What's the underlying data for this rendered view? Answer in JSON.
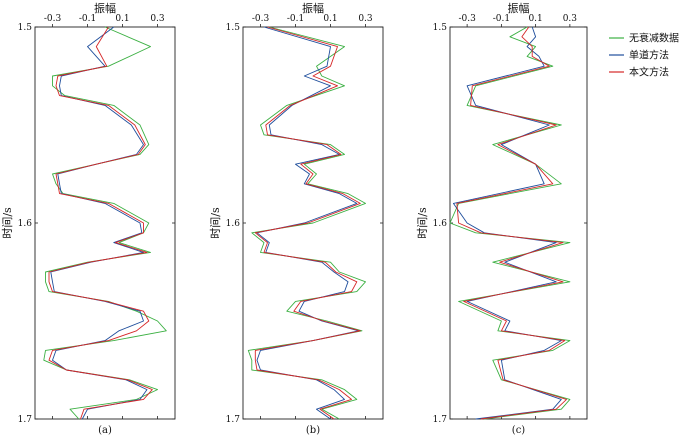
{
  "chart_data": [
    {
      "type": "line",
      "orientation": "vertical-trace",
      "panel_label": "(a)",
      "xlabel": "振幅",
      "ylabel": "时间/s",
      "xlim": [
        -0.4,
        0.4
      ],
      "ylim": [
        1.5,
        1.7
      ],
      "x_ticks": [
        "-0.3",
        "-0.1",
        "0.1",
        "0.3"
      ],
      "y_ticks": [
        "1.5",
        "1.6",
        "1.7"
      ],
      "series": [
        {
          "name": "无衰减数据",
          "color": "#3cb043",
          "t": [
            1.5,
            1.51,
            1.52,
            1.525,
            1.53,
            1.535,
            1.54,
            1.55,
            1.56,
            1.565,
            1.57,
            1.575,
            1.58,
            1.585,
            1.59,
            1.6,
            1.605,
            1.61,
            1.615,
            1.62,
            1.625,
            1.63,
            1.635,
            1.64,
            1.645,
            1.65,
            1.655,
            1.66,
            1.665,
            1.67,
            1.675,
            1.68,
            1.685,
            1.69,
            1.695,
            1.7
          ],
          "v": [
            0.0,
            0.26,
            0.02,
            -0.3,
            -0.3,
            -0.23,
            0.05,
            0.2,
            0.25,
            0.2,
            -0.05,
            -0.3,
            -0.28,
            -0.24,
            0.05,
            0.25,
            0.22,
            0.08,
            0.26,
            -0.1,
            -0.34,
            -0.34,
            -0.32,
            0.02,
            0.18,
            0.3,
            0.35,
            0.05,
            -0.34,
            -0.35,
            -0.22,
            0.14,
            0.3,
            0.18,
            -0.2,
            -0.15
          ]
        },
        {
          "name": "单道方法",
          "color": "#1f4e9c",
          "t": [
            1.5,
            1.51,
            1.52,
            1.525,
            1.53,
            1.535,
            1.54,
            1.55,
            1.56,
            1.565,
            1.57,
            1.575,
            1.58,
            1.585,
            1.59,
            1.6,
            1.605,
            1.61,
            1.615,
            1.62,
            1.625,
            1.63,
            1.635,
            1.64,
            1.645,
            1.65,
            1.655,
            1.66,
            1.665,
            1.67,
            1.675,
            1.68,
            1.685,
            1.69,
            1.695,
            1.7
          ],
          "v": [
            0.05,
            -0.1,
            0.0,
            -0.25,
            -0.26,
            -0.25,
            0.0,
            0.15,
            0.22,
            0.18,
            -0.05,
            -0.27,
            -0.26,
            -0.25,
            0.0,
            0.2,
            0.21,
            0.05,
            0.22,
            -0.08,
            -0.31,
            -0.3,
            -0.29,
            0.0,
            0.2,
            0.22,
            0.08,
            0.0,
            -0.28,
            -0.3,
            -0.22,
            0.12,
            0.24,
            0.2,
            -0.1,
            -0.13
          ]
        },
        {
          "name": "本文方法",
          "color": "#d62728",
          "t": [
            1.5,
            1.51,
            1.52,
            1.525,
            1.53,
            1.535,
            1.54,
            1.55,
            1.56,
            1.565,
            1.57,
            1.575,
            1.58,
            1.585,
            1.59,
            1.6,
            1.605,
            1.61,
            1.615,
            1.62,
            1.625,
            1.63,
            1.635,
            1.64,
            1.645,
            1.65,
            1.655,
            1.66,
            1.665,
            1.67,
            1.675,
            1.68,
            1.685,
            1.69,
            1.695,
            1.7
          ],
          "v": [
            0.02,
            -0.05,
            0.01,
            -0.27,
            -0.28,
            -0.26,
            0.02,
            0.17,
            0.23,
            0.19,
            -0.05,
            -0.28,
            -0.27,
            -0.26,
            0.02,
            0.22,
            0.22,
            0.06,
            0.24,
            -0.09,
            -0.32,
            -0.32,
            -0.3,
            0.01,
            0.22,
            0.25,
            0.18,
            0.02,
            -0.3,
            -0.32,
            -0.22,
            0.13,
            0.27,
            0.22,
            -0.12,
            -0.14
          ]
        }
      ]
    },
    {
      "type": "line",
      "orientation": "vertical-trace",
      "panel_label": "(b)",
      "xlabel": "振幅",
      "ylabel": "时间/s",
      "xlim": [
        -0.4,
        0.4
      ],
      "ylim": [
        1.5,
        1.7
      ],
      "x_ticks": [
        "-0.3",
        "-0.1",
        "0.1",
        "0.3"
      ],
      "y_ticks": [
        "1.5",
        "1.6",
        "1.7"
      ],
      "series": [
        {
          "name": "无衰减数据",
          "color": "#3cb043",
          "t": [
            1.5,
            1.51,
            1.52,
            1.525,
            1.53,
            1.54,
            1.55,
            1.555,
            1.56,
            1.565,
            1.57,
            1.575,
            1.58,
            1.585,
            1.59,
            1.6,
            1.605,
            1.61,
            1.615,
            1.62,
            1.625,
            1.63,
            1.635,
            1.64,
            1.645,
            1.65,
            1.655,
            1.66,
            1.665,
            1.67,
            1.675,
            1.68,
            1.685,
            1.69,
            1.695,
            1.7
          ],
          "v": [
            -0.25,
            0.18,
            0.02,
            0.05,
            0.18,
            -0.15,
            -0.3,
            -0.28,
            0.1,
            0.18,
            -0.05,
            0.02,
            -0.03,
            0.2,
            0.3,
            0.0,
            -0.35,
            -0.28,
            -0.3,
            0.1,
            0.15,
            0.3,
            0.25,
            -0.1,
            -0.15,
            0.08,
            0.28,
            0.0,
            -0.37,
            -0.35,
            -0.35,
            0.05,
            0.18,
            0.25,
            0.05,
            0.15
          ]
        },
        {
          "name": "单道方法",
          "color": "#1f4e9c",
          "t": [
            1.5,
            1.51,
            1.52,
            1.525,
            1.53,
            1.54,
            1.55,
            1.555,
            1.56,
            1.565,
            1.57,
            1.575,
            1.58,
            1.585,
            1.59,
            1.6,
            1.605,
            1.61,
            1.615,
            1.62,
            1.625,
            1.63,
            1.635,
            1.64,
            1.645,
            1.65,
            1.655,
            1.66,
            1.665,
            1.67,
            1.675,
            1.68,
            1.685,
            1.69,
            1.695,
            1.7
          ],
          "v": [
            -0.28,
            0.1,
            0.08,
            -0.05,
            0.1,
            -0.12,
            -0.25,
            -0.24,
            0.05,
            0.15,
            -0.1,
            -0.02,
            -0.05,
            0.15,
            0.25,
            -0.05,
            -0.32,
            -0.25,
            -0.27,
            0.05,
            0.12,
            0.2,
            0.18,
            -0.05,
            -0.08,
            0.05,
            0.26,
            0.0,
            -0.3,
            -0.32,
            -0.3,
            0.02,
            0.12,
            0.18,
            0.02,
            0.1
          ]
        },
        {
          "name": "本文方法",
          "color": "#d62728",
          "t": [
            1.5,
            1.51,
            1.52,
            1.525,
            1.53,
            1.54,
            1.55,
            1.555,
            1.56,
            1.565,
            1.57,
            1.575,
            1.58,
            1.585,
            1.59,
            1.6,
            1.605,
            1.61,
            1.615,
            1.62,
            1.625,
            1.63,
            1.635,
            1.64,
            1.645,
            1.65,
            1.655,
            1.66,
            1.665,
            1.67,
            1.675,
            1.68,
            1.685,
            1.69,
            1.695,
            1.7
          ],
          "v": [
            -0.26,
            0.14,
            0.1,
            0.0,
            0.14,
            -0.13,
            -0.27,
            -0.26,
            0.08,
            0.16,
            -0.07,
            0.0,
            -0.04,
            0.17,
            0.27,
            -0.03,
            -0.33,
            -0.26,
            -0.28,
            0.07,
            0.13,
            0.25,
            0.22,
            -0.07,
            -0.11,
            0.06,
            0.27,
            0.0,
            -0.33,
            -0.33,
            -0.32,
            0.03,
            0.15,
            0.22,
            0.04,
            0.12
          ]
        }
      ]
    },
    {
      "type": "line",
      "orientation": "vertical-trace",
      "panel_label": "(c)",
      "xlabel": "振幅",
      "ylabel": "时间/s",
      "xlim": [
        -0.4,
        0.4
      ],
      "ylim": [
        1.5,
        1.7
      ],
      "x_ticks": [
        "-0.3",
        "-0.1",
        "0.1",
        "0.3"
      ],
      "y_ticks": [
        "1.5",
        "1.6",
        "1.7"
      ],
      "series": [
        {
          "name": "无衰减数据",
          "color": "#3cb043",
          "t": [
            1.5,
            1.505,
            1.51,
            1.515,
            1.52,
            1.53,
            1.54,
            1.55,
            1.56,
            1.57,
            1.58,
            1.59,
            1.6,
            1.605,
            1.61,
            1.62,
            1.63,
            1.64,
            1.65,
            1.655,
            1.66,
            1.665,
            1.67,
            1.68,
            1.69,
            1.695,
            1.7
          ],
          "v": [
            0.05,
            -0.05,
            0.1,
            0.05,
            0.2,
            -0.25,
            -0.3,
            0.25,
            -0.15,
            0.1,
            0.25,
            -0.35,
            -0.4,
            -0.25,
            0.3,
            -0.15,
            0.3,
            -0.35,
            -0.1,
            -0.12,
            0.3,
            0.2,
            -0.15,
            -0.1,
            0.3,
            0.25,
            -0.2
          ]
        },
        {
          "name": "单道方法",
          "color": "#1f4e9c",
          "t": [
            1.5,
            1.505,
            1.51,
            1.515,
            1.52,
            1.53,
            1.54,
            1.55,
            1.56,
            1.57,
            1.58,
            1.59,
            1.6,
            1.605,
            1.61,
            1.62,
            1.63,
            1.64,
            1.65,
            1.655,
            1.66,
            1.665,
            1.67,
            1.68,
            1.69,
            1.695,
            1.7
          ],
          "v": [
            0.08,
            0.1,
            0.05,
            0.12,
            0.15,
            -0.3,
            -0.25,
            0.18,
            -0.1,
            0.1,
            0.15,
            -0.38,
            -0.3,
            -0.2,
            0.22,
            -0.08,
            0.22,
            -0.3,
            -0.05,
            -0.08,
            0.25,
            0.15,
            -0.1,
            -0.08,
            0.25,
            0.2,
            -0.25
          ]
        },
        {
          "name": "本文方法",
          "color": "#d62728",
          "t": [
            1.5,
            1.505,
            1.51,
            1.515,
            1.52,
            1.53,
            1.54,
            1.55,
            1.56,
            1.57,
            1.58,
            1.59,
            1.6,
            1.605,
            1.61,
            1.62,
            1.63,
            1.64,
            1.65,
            1.655,
            1.66,
            1.665,
            1.67,
            1.68,
            1.69,
            1.695,
            1.7
          ],
          "v": [
            0.06,
            0.02,
            0.08,
            0.08,
            0.18,
            -0.27,
            -0.28,
            0.22,
            -0.12,
            0.1,
            0.2,
            -0.36,
            -0.35,
            -0.22,
            0.26,
            -0.11,
            0.26,
            -0.32,
            -0.07,
            -0.1,
            0.27,
            0.18,
            -0.12,
            -0.09,
            0.28,
            0.22,
            -0.22
          ]
        }
      ]
    }
  ],
  "legend": {
    "placement": "top-right",
    "items": [
      {
        "label": "无衰减数据",
        "color": "#3cb043"
      },
      {
        "label": "单道方法",
        "color": "#1f4e9c"
      },
      {
        "label": "本文方法",
        "color": "#d62728"
      }
    ]
  }
}
